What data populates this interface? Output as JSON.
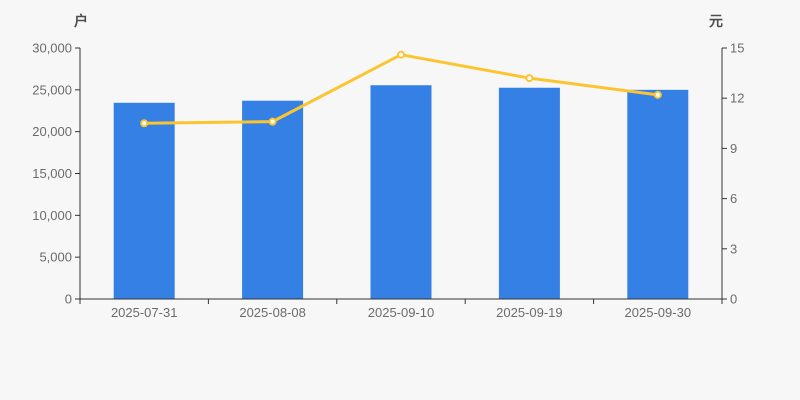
{
  "chart_data": {
    "type": "bar+line",
    "title": "",
    "categories": [
      "2025-07-31",
      "2025-08-08",
      "2025-09-10",
      "2025-09-19",
      "2025-09-30"
    ],
    "series": [
      {
        "type": "bar",
        "axis": "left",
        "unit": "户",
        "color": "#3580e4",
        "values": [
          23450,
          23700,
          25550,
          25250,
          25000
        ]
      },
      {
        "type": "line",
        "axis": "right",
        "unit": "元",
        "color": "#fbc531",
        "values": [
          10.5,
          10.6,
          14.6,
          13.2,
          12.2
        ]
      }
    ],
    "left_axis": {
      "name": "户",
      "min": 0,
      "max": 30000,
      "tick_labels": [
        "0",
        "5,000",
        "10,000",
        "15,000",
        "20,000",
        "25,000",
        "30,000"
      ]
    },
    "right_axis": {
      "name": "元",
      "min": 0,
      "max": 15,
      "tick_labels": [
        "0",
        "3",
        "6",
        "9",
        "12",
        "15"
      ]
    },
    "grid": false,
    "legend": false
  },
  "colors": {
    "background": "#f7f7f7",
    "bar": "#3580e4",
    "line": "#fbc531",
    "marker_fill": "#ffffff",
    "axis": "#333333",
    "tick_text": "#6b6b6b",
    "unit_text": "#4d4d4d"
  }
}
